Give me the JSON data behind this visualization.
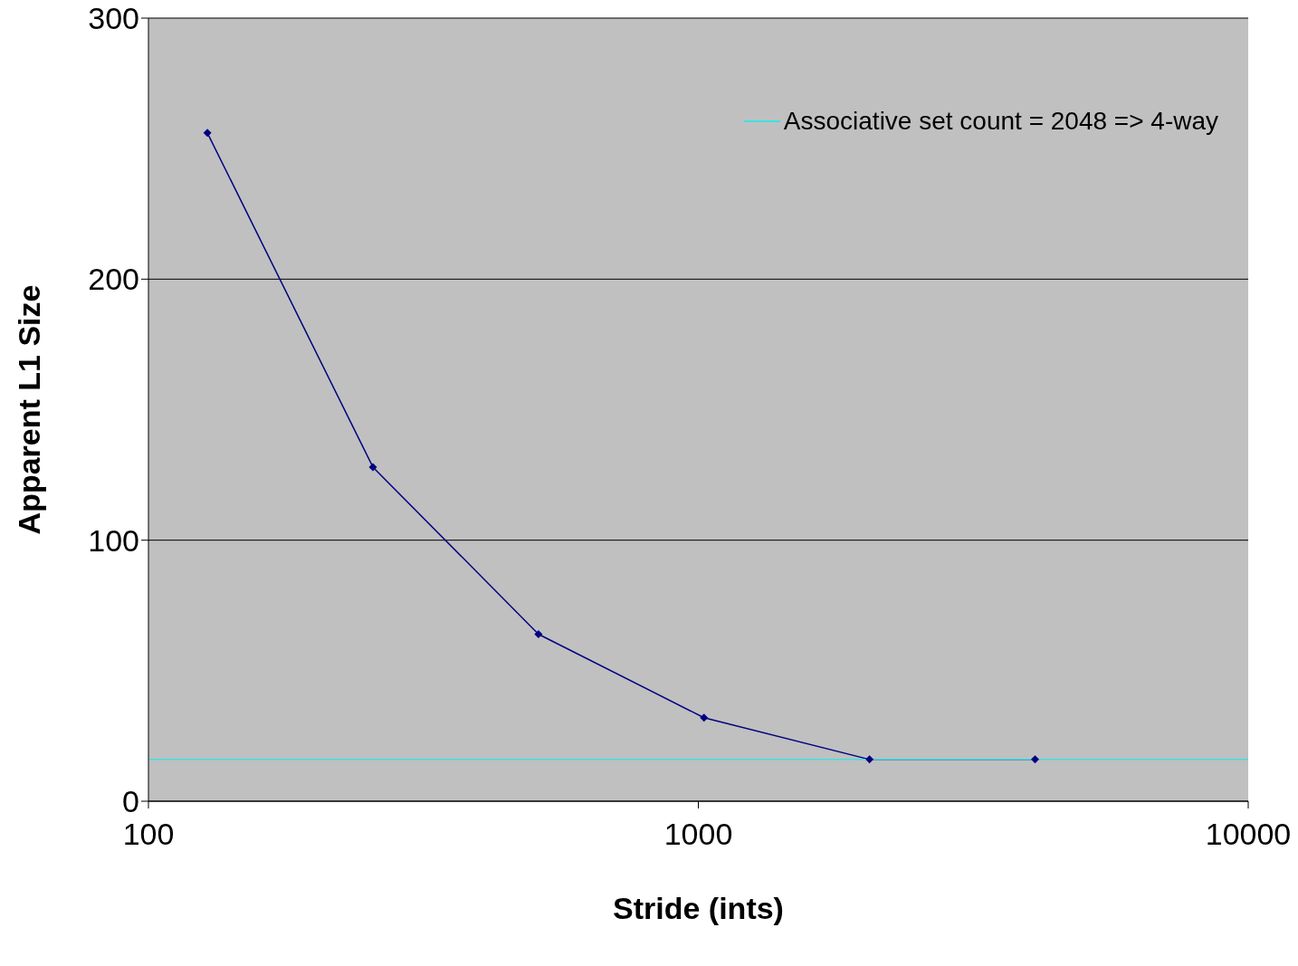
{
  "chart_data": {
    "type": "line",
    "xlabel": "Stride (ints)",
    "ylabel": "Apparent L1 Size",
    "log": "x",
    "xlim": [
      100,
      10000
    ],
    "xticks": [
      100,
      1000,
      10000
    ],
    "ylim": [
      0,
      300
    ],
    "yticks": [
      0,
      100,
      200,
      300
    ],
    "grid": "y",
    "legend": "top right",
    "series": [
      {
        "color": "#000080",
        "marker": "diamond",
        "x": [
          128,
          256,
          512,
          1024,
          2048,
          4096
        ],
        "values": [
          256,
          128,
          64,
          32,
          16,
          16
        ]
      },
      {
        "name": "Associative set count = 2048 => 4-way",
        "color": "#40e0e0",
        "marker": "none",
        "x": [
          100,
          10000
        ],
        "values": [
          16,
          16
        ]
      }
    ]
  }
}
